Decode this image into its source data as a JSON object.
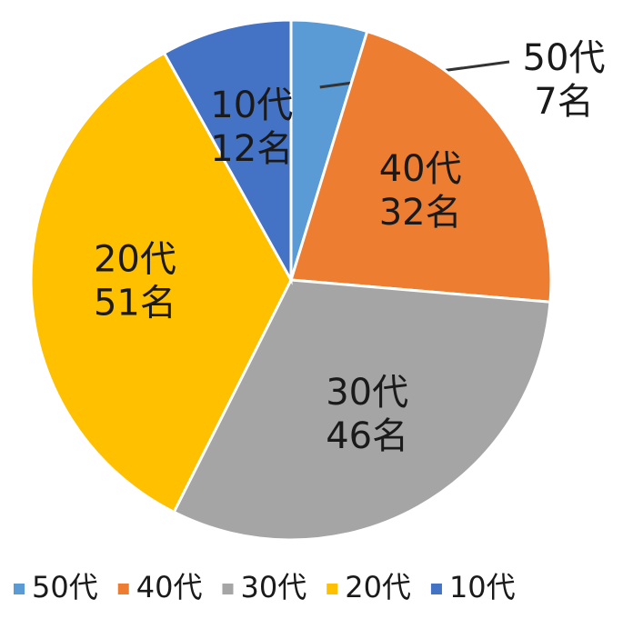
{
  "chart_data": {
    "type": "pie",
    "categories": [
      "50代",
      "40代",
      "30代",
      "20代",
      "10代"
    ],
    "values": [
      7,
      32,
      46,
      51,
      12
    ],
    "value_labels": [
      "7名",
      "32名",
      "46名",
      "51名",
      "12名"
    ],
    "colors": [
      "#5b9bd5",
      "#ed7d31",
      "#a5a5a5",
      "#ffc000",
      "#4472c4"
    ],
    "legend": "bottom"
  }
}
